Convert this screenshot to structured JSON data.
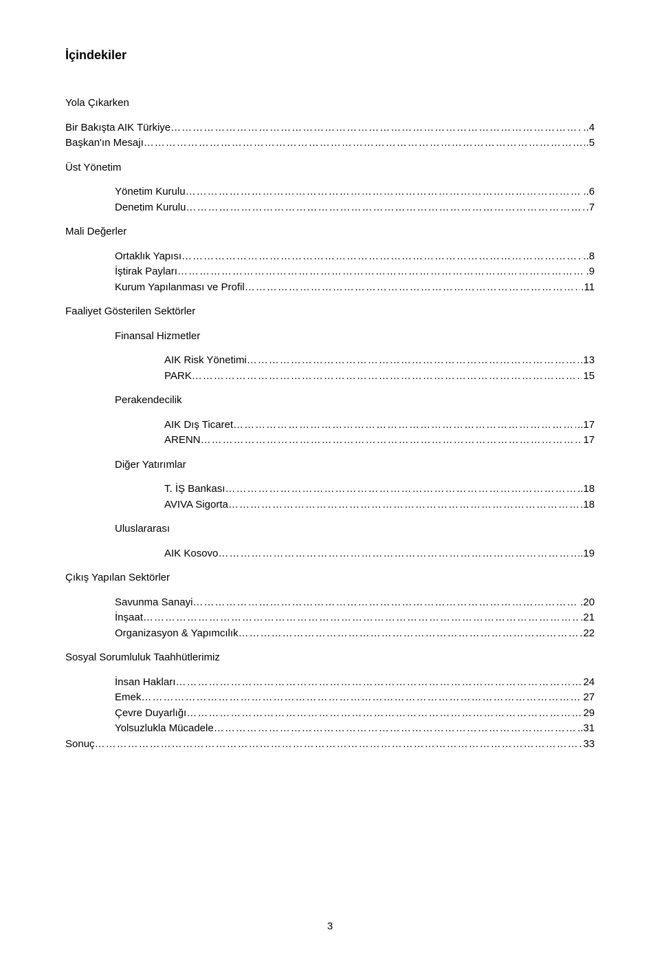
{
  "title": "İçindekiler",
  "toc": [
    {
      "label": "Yola Çıkarken",
      "indent": 0,
      "page": "",
      "heading": true
    },
    {
      "label": "Bir Bakışta AIK Türkiye",
      "indent": 0,
      "page": "..4"
    },
    {
      "label": "Başkan'ın Mesajı",
      "indent": 0,
      "page": "..5"
    },
    {
      "label": "Üst Yönetim",
      "indent": 0,
      "page": "",
      "heading": true
    },
    {
      "label": "Yönetim Kurulu",
      "indent": 1,
      "page": "..6"
    },
    {
      "label": "Denetim Kurulu",
      "indent": 1,
      "page": ".7"
    },
    {
      "label": "Mali Değerler",
      "indent": 0,
      "page": "",
      "heading": true
    },
    {
      "label": "Ortaklık Yapısı",
      "indent": 1,
      "page": "..8"
    },
    {
      "label": "İştirak Payları",
      "indent": 1,
      "page": ".9"
    },
    {
      "label": "Kurum Yapılanması ve Profil",
      "indent": 1,
      "page": ".11"
    },
    {
      "label": "Faaliyet Gösterilen Sektörler",
      "indent": 0,
      "page": "",
      "heading": true
    },
    {
      "label": "Finansal Hizmetler",
      "indent": 1,
      "page": "",
      "heading": true
    },
    {
      "label": "AIK Risk Yönetimi",
      "indent": 2,
      "page": ".13"
    },
    {
      "label": "PARK",
      "indent": 2,
      "page": "15"
    },
    {
      "label": "Perakendecilik",
      "indent": 1,
      "page": "",
      "heading": true
    },
    {
      "label": "AIK Dış Ticaret",
      "indent": 2,
      "page": "..17"
    },
    {
      "label": "ARENN",
      "indent": 2,
      "page": "17"
    },
    {
      "label": "Diğer Yatırımlar",
      "indent": 1,
      "page": "",
      "heading": true
    },
    {
      "label": "T. İŞ Bankası",
      "indent": 2,
      "page": "..18"
    },
    {
      "label": "AVIVA Sigorta",
      "indent": 2,
      "page": ".18"
    },
    {
      "label": "Uluslararası",
      "indent": 1,
      "page": "",
      "heading": true
    },
    {
      "label": "AIK Kosovo",
      "indent": 2,
      "page": "..19"
    },
    {
      "label": "Çıkış Yapılan Sektörler",
      "indent": 0,
      "page": "",
      "heading": true
    },
    {
      "label": "Savunma Sanayi",
      "indent": 1,
      "page": ".20"
    },
    {
      "label": "İnşaat",
      "indent": 1,
      "page": ".21"
    },
    {
      "label": "Organizasyon & Yapımcılık",
      "indent": 1,
      "page": "22"
    },
    {
      "label": "Sosyal Sorumluluk Taahhütlerimiz",
      "indent": 0,
      "page": "",
      "heading": true
    },
    {
      "label": "İnsan Hakları",
      "indent": 1,
      "page": "24"
    },
    {
      "label": "Emek",
      "indent": 1,
      "page": "27"
    },
    {
      "label": "Çevre Duyarlığı",
      "indent": 1,
      "page": "29"
    },
    {
      "label": "Yolsuzlukla Mücadele",
      "indent": 1,
      "page": "..31"
    },
    {
      "label": "Sonuç",
      "indent": 0,
      "page": "33"
    }
  ],
  "page_number": "3"
}
